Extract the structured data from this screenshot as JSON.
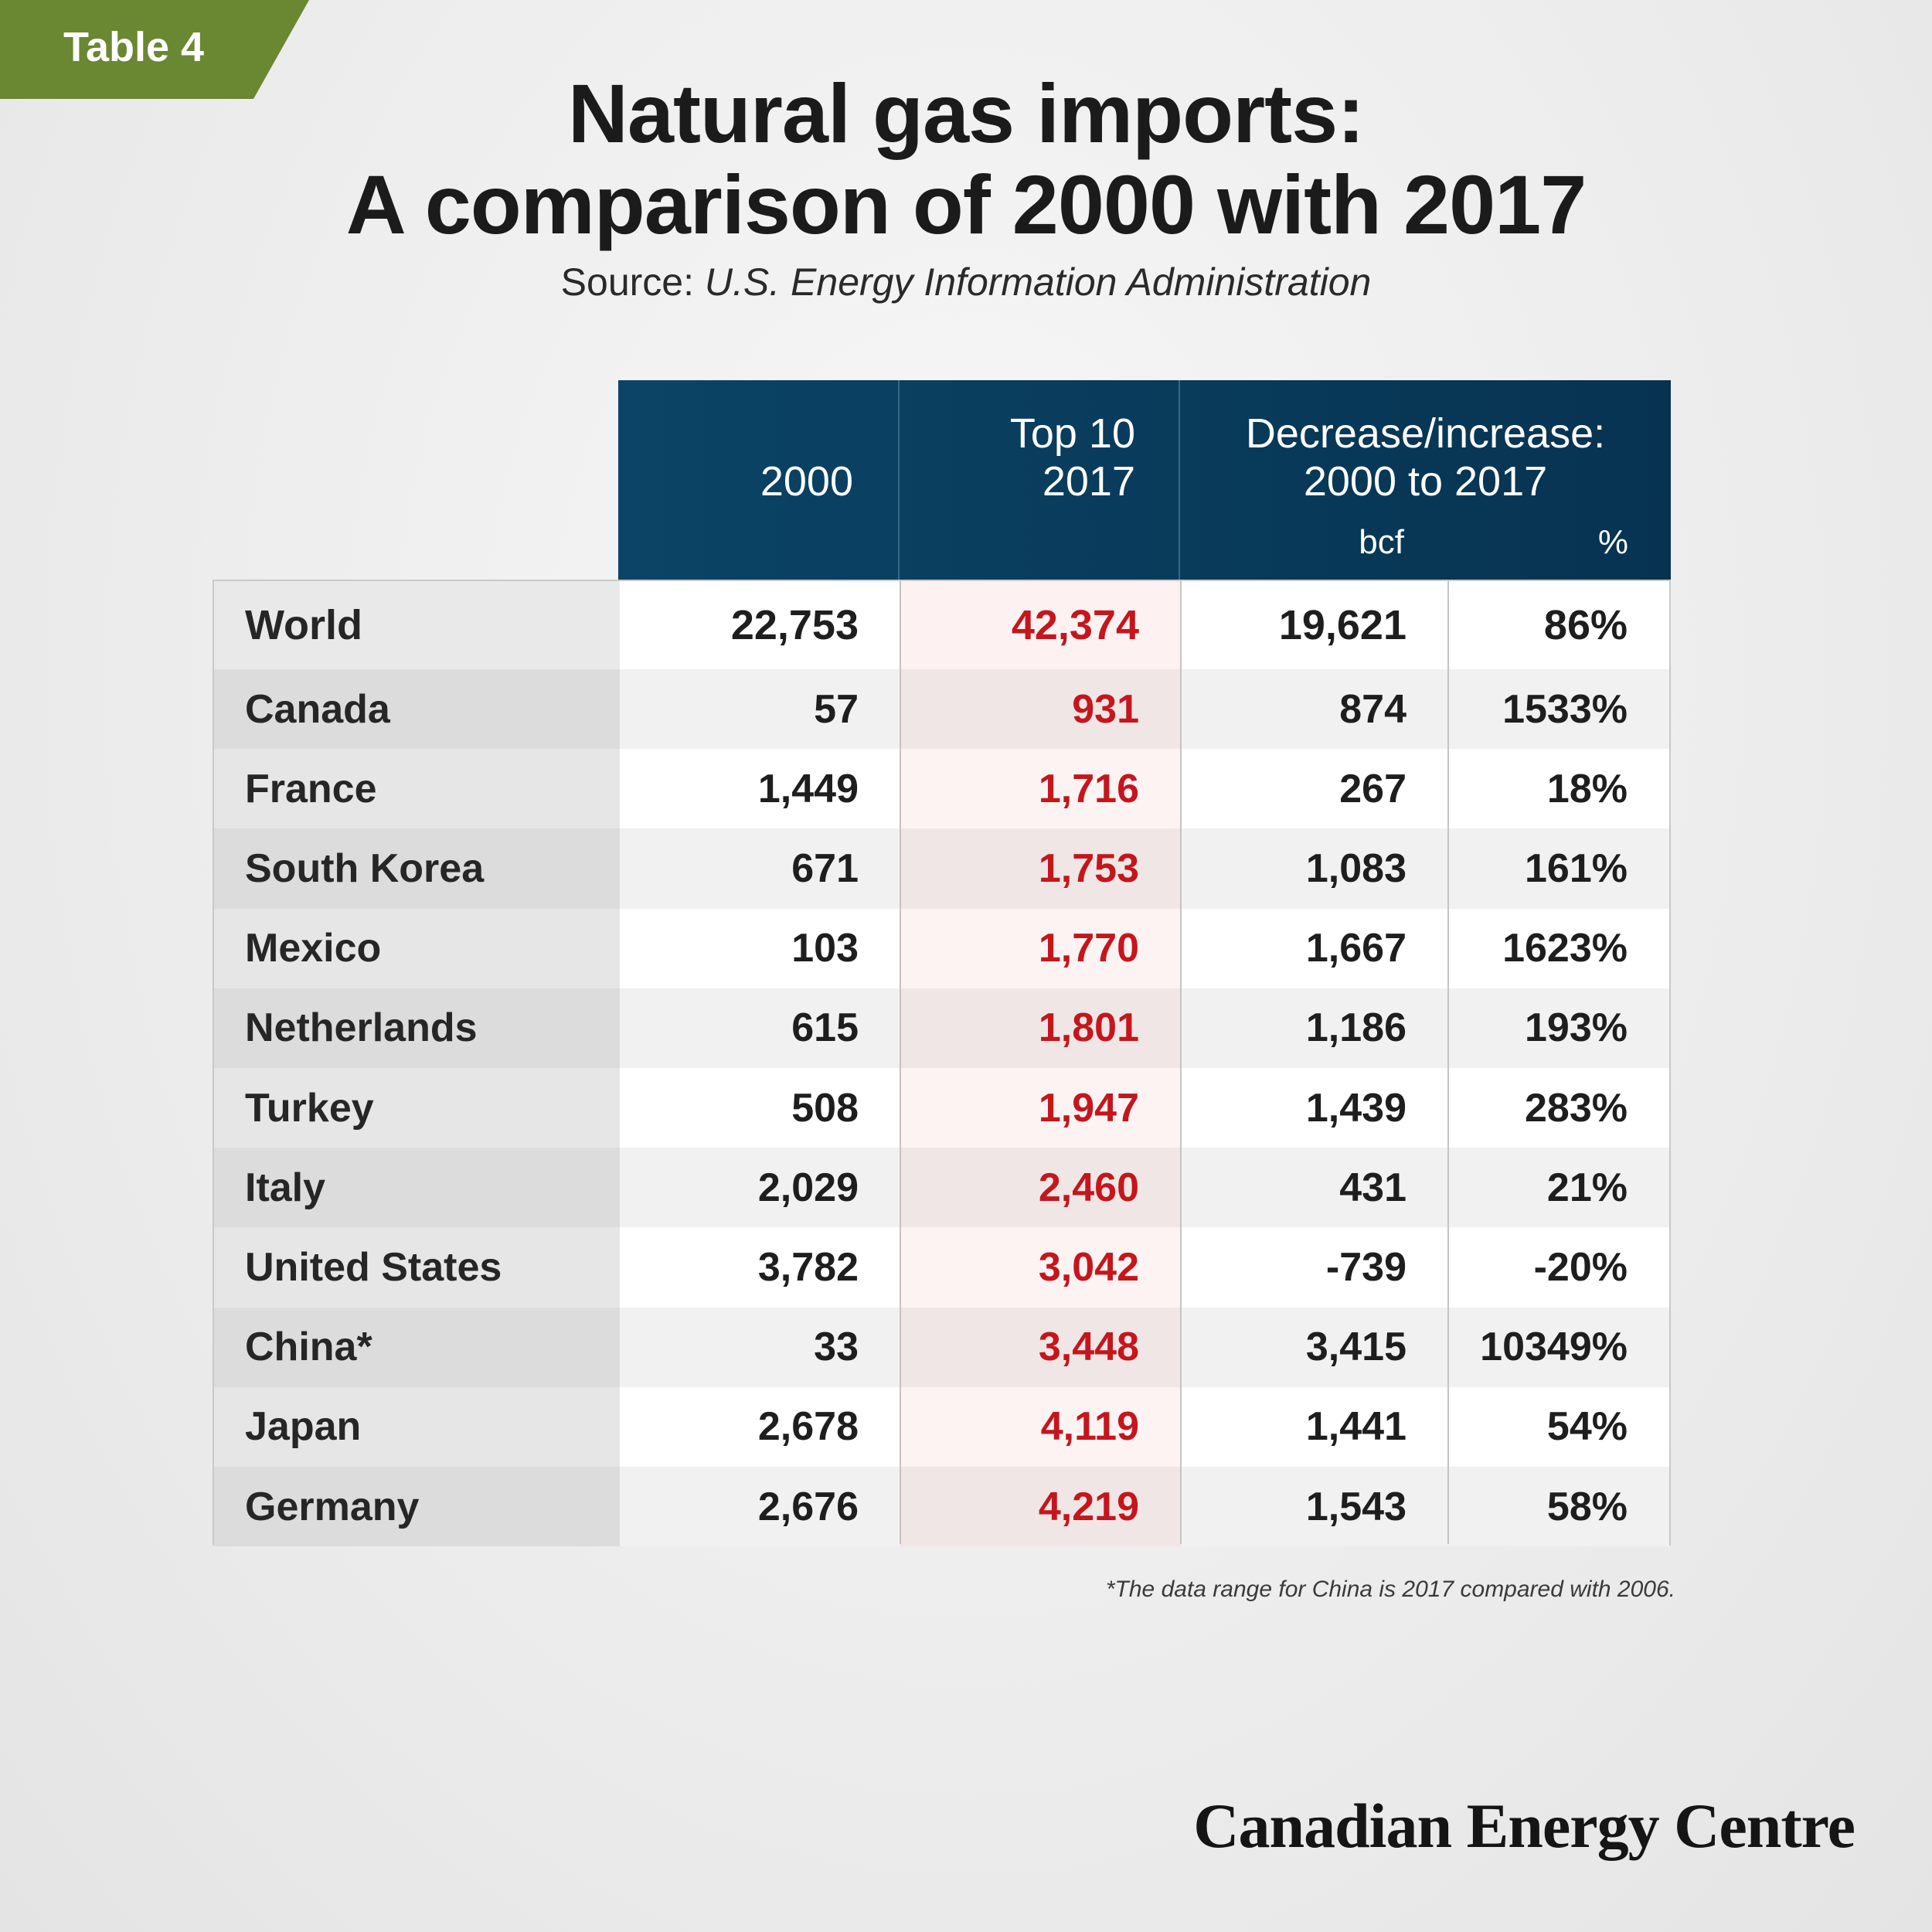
{
  "tag": "Table 4",
  "title": {
    "line1": "Natural gas imports:",
    "line2": "A comparison of 2000 with 2017"
  },
  "source": {
    "label": "Source:",
    "text": "U.S. Energy Information Administration"
  },
  "chart_data": {
    "type": "table",
    "title": "Natural gas imports: A comparison of 2000 with 2017",
    "columns": {
      "c2000": "2000",
      "c2017_line1": "Top 10",
      "c2017_line2": "2017",
      "change_line1": "Decrease/increase:",
      "change_line2": "2000 to 2017",
      "bcf": "bcf",
      "pct": "%"
    },
    "rows": [
      {
        "name": "World",
        "v2000": "22,753",
        "v2017": "42,374",
        "bcf": "19,621",
        "pct": "86%"
      },
      {
        "name": "Canada",
        "v2000": "57",
        "v2017": "931",
        "bcf": "874",
        "pct": "1533%"
      },
      {
        "name": "France",
        "v2000": "1,449",
        "v2017": "1,716",
        "bcf": "267",
        "pct": "18%"
      },
      {
        "name": "South Korea",
        "v2000": "671",
        "v2017": "1,753",
        "bcf": "1,083",
        "pct": "161%"
      },
      {
        "name": "Mexico",
        "v2000": "103",
        "v2017": "1,770",
        "bcf": "1,667",
        "pct": "1623%"
      },
      {
        "name": "Netherlands",
        "v2000": "615",
        "v2017": "1,801",
        "bcf": "1,186",
        "pct": "193%"
      },
      {
        "name": "Turkey",
        "v2000": "508",
        "v2017": "1,947",
        "bcf": "1,439",
        "pct": "283%"
      },
      {
        "name": "Italy",
        "v2000": "2,029",
        "v2017": "2,460",
        "bcf": "431",
        "pct": "21%"
      },
      {
        "name": "United States",
        "v2000": "3,782",
        "v2017": "3,042",
        "bcf": "-739",
        "pct": "-20%"
      },
      {
        "name": "China*",
        "v2000": "33",
        "v2017": "3,448",
        "bcf": "3,415",
        "pct": "10349%"
      },
      {
        "name": "Japan",
        "v2000": "2,678",
        "v2017": "4,119",
        "bcf": "1,441",
        "pct": "54%"
      },
      {
        "name": "Germany",
        "v2000": "2,676",
        "v2017": "4,219",
        "bcf": "1,543",
        "pct": "58%"
      }
    ]
  },
  "footnote": "*The data range for China is 2017 compared with 2006.",
  "logo": "Canadian Energy Centre",
  "colors": {
    "tag": "#6a8732",
    "header": "#0b4466",
    "highlight_2017": "#c4161c"
  }
}
